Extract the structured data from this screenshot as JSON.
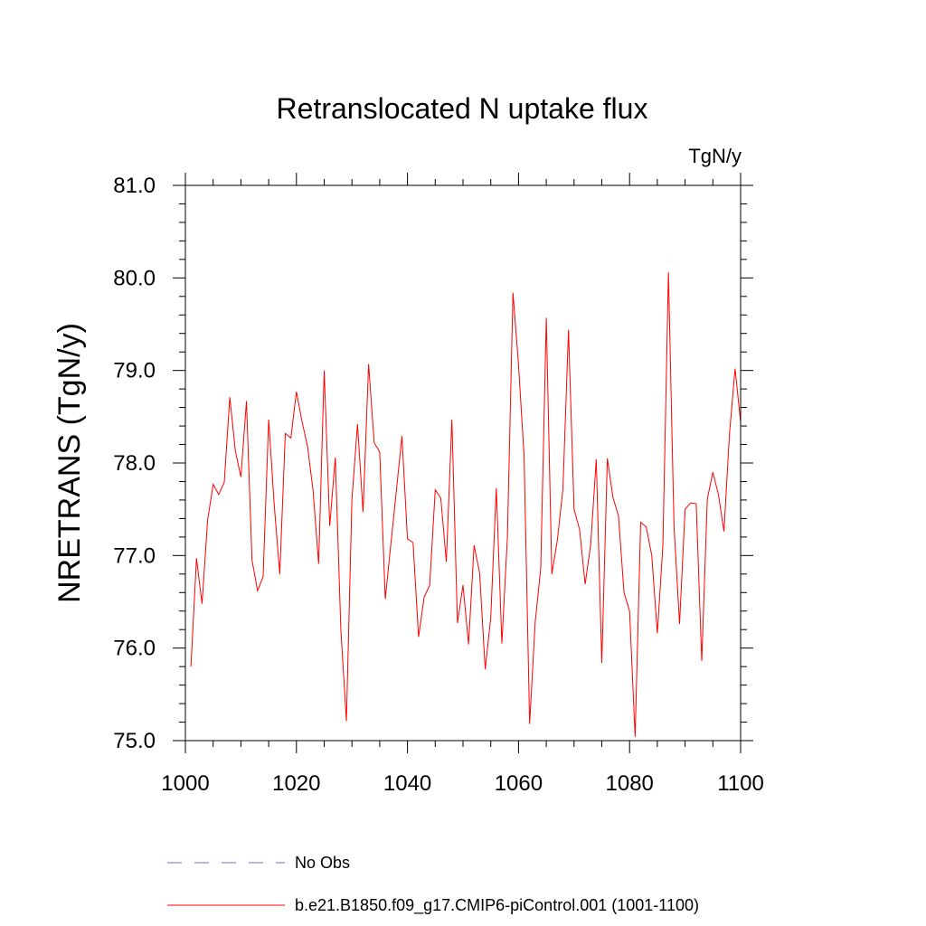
{
  "chart_data": {
    "type": "line",
    "title": "Retranslocated N uptake flux",
    "units": "TgN/y",
    "xlabel": "",
    "ylabel": "NRETRANS  (TgN/y)",
    "xlim": [
      1000,
      1100
    ],
    "ylim": [
      75.0,
      81.0
    ],
    "x_ticks": [
      1000,
      1020,
      1040,
      1060,
      1080,
      1100
    ],
    "x_tick_labels": [
      "1000",
      "1020",
      "1040",
      "1060",
      "1080",
      "1100"
    ],
    "y_ticks": [
      75.0,
      76.0,
      77.0,
      78.0,
      79.0,
      80.0,
      81.0
    ],
    "y_tick_labels": [
      "75.0",
      "76.0",
      "77.0",
      "78.0",
      "79.0",
      "80.0",
      "81.0"
    ],
    "legend": [
      {
        "label": "No Obs",
        "color": "#7070d0",
        "style": "dashed"
      },
      {
        "label": "b.e21.B1850.f09_g17.CMIP6-piControl.001 (1001-1100)",
        "color": "#ff0000",
        "style": "solid"
      }
    ],
    "series": [
      {
        "name": "b.e21.B1850.f09_g17.CMIP6-piControl.001 (1001-1100)",
        "color": "#ff0000",
        "x": [
          1001,
          1002,
          1003,
          1004,
          1005,
          1006,
          1007,
          1008,
          1009,
          1010,
          1011,
          1012,
          1013,
          1014,
          1015,
          1016,
          1017,
          1018,
          1019,
          1020,
          1021,
          1022,
          1023,
          1024,
          1025,
          1026,
          1027,
          1028,
          1029,
          1030,
          1031,
          1032,
          1033,
          1034,
          1035,
          1036,
          1037,
          1038,
          1039,
          1040,
          1041,
          1042,
          1043,
          1044,
          1045,
          1046,
          1047,
          1048,
          1049,
          1050,
          1051,
          1052,
          1053,
          1054,
          1055,
          1056,
          1057,
          1058,
          1059,
          1060,
          1061,
          1062,
          1063,
          1064,
          1065,
          1066,
          1067,
          1068,
          1069,
          1070,
          1071,
          1072,
          1073,
          1074,
          1075,
          1076,
          1077,
          1078,
          1079,
          1080,
          1081,
          1082,
          1083,
          1084,
          1085,
          1086,
          1087,
          1088,
          1089,
          1090,
          1091,
          1092,
          1093,
          1094,
          1095,
          1096,
          1097,
          1098,
          1099,
          1100
        ],
        "values": [
          75.8,
          76.97,
          76.48,
          77.38,
          77.77,
          77.66,
          77.79,
          78.71,
          78.13,
          77.85,
          78.67,
          76.95,
          76.62,
          76.77,
          78.47,
          77.55,
          76.8,
          78.32,
          78.27,
          78.77,
          78.45,
          78.18,
          77.7,
          76.91,
          79.0,
          77.32,
          78.06,
          76.2,
          75.21,
          77.61,
          78.42,
          77.47,
          79.07,
          78.22,
          78.12,
          76.53,
          77.12,
          77.7,
          78.29,
          77.18,
          77.14,
          76.12,
          76.55,
          76.68,
          77.71,
          77.62,
          76.93,
          78.47,
          76.27,
          76.68,
          76.04,
          77.11,
          76.81,
          75.77,
          76.33,
          77.73,
          76.05,
          77.2,
          79.84,
          79.06,
          78.08,
          75.18,
          76.28,
          76.86,
          79.57,
          76.8,
          77.17,
          77.72,
          79.44,
          77.5,
          77.28,
          76.69,
          77.12,
          78.04,
          75.84,
          78.05,
          77.63,
          77.43,
          76.6,
          76.4,
          75.04,
          77.36,
          77.31,
          77.0,
          76.16,
          77.11,
          80.06,
          77.33,
          76.26,
          77.5,
          77.57,
          77.56,
          75.86,
          77.61,
          77.9,
          77.66,
          77.26,
          78.32,
          79.02,
          78.44
        ]
      }
    ]
  }
}
